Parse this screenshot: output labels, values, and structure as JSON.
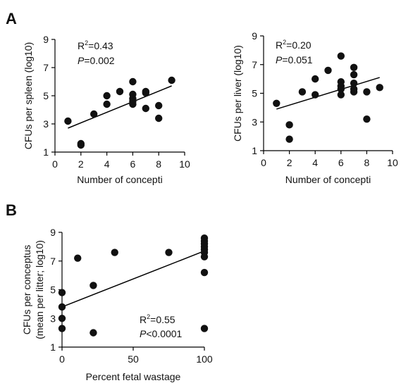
{
  "panels": [
    {
      "letter": "A"
    },
    {
      "letter": "B"
    }
  ],
  "chart_data": [
    {
      "type": "scatter",
      "title": "",
      "xlabel": "Number of concepti",
      "ylabel": "CFUs per spleen (log10)",
      "xlim": [
        0,
        10
      ],
      "ylim": [
        1,
        9
      ],
      "xticks": [
        0,
        2,
        4,
        6,
        8,
        10
      ],
      "yticks": [
        1,
        3,
        5,
        7,
        9
      ],
      "stats": {
        "r2_prefix": "R",
        "r2_sup": "2",
        "r2_value": "=0.43",
        "p_italic": "P",
        "p_value": "=0.002"
      },
      "fit_line": {
        "x": [
          1,
          9
        ],
        "y": [
          2.7,
          5.7
        ]
      },
      "points": [
        {
          "x": 1,
          "y": 3.2
        },
        {
          "x": 2,
          "y": 1.6
        },
        {
          "x": 2,
          "y": 1.5
        },
        {
          "x": 3,
          "y": 3.7
        },
        {
          "x": 4,
          "y": 5.0
        },
        {
          "x": 4,
          "y": 4.4
        },
        {
          "x": 5,
          "y": 5.3
        },
        {
          "x": 6,
          "y": 6.0
        },
        {
          "x": 6,
          "y": 5.1
        },
        {
          "x": 6,
          "y": 4.8
        },
        {
          "x": 6,
          "y": 4.6
        },
        {
          "x": 6,
          "y": 4.4
        },
        {
          "x": 7,
          "y": 5.3
        },
        {
          "x": 7,
          "y": 5.2
        },
        {
          "x": 7,
          "y": 4.1
        },
        {
          "x": 8,
          "y": 4.3
        },
        {
          "x": 8,
          "y": 3.4
        },
        {
          "x": 9,
          "y": 6.1
        }
      ]
    },
    {
      "type": "scatter",
      "title": "",
      "xlabel": "Number of concepti",
      "ylabel": "CFUs per liver (log10)",
      "xlim": [
        0,
        10
      ],
      "ylim": [
        1,
        9
      ],
      "xticks": [
        0,
        2,
        4,
        6,
        8,
        10
      ],
      "yticks": [
        1,
        3,
        5,
        7,
        9
      ],
      "stats": {
        "r2_prefix": "R",
        "r2_sup": "2",
        "r2_value": "=0.20",
        "p_italic": "P",
        "p_value": "=0.051"
      },
      "fit_line": {
        "x": [
          1,
          9
        ],
        "y": [
          3.9,
          6.1
        ]
      },
      "points": [
        {
          "x": 1,
          "y": 4.3
        },
        {
          "x": 2,
          "y": 2.8
        },
        {
          "x": 2,
          "y": 1.8
        },
        {
          "x": 3,
          "y": 5.1
        },
        {
          "x": 4,
          "y": 6.0
        },
        {
          "x": 4,
          "y": 4.9
        },
        {
          "x": 5,
          "y": 6.6
        },
        {
          "x": 6,
          "y": 7.6
        },
        {
          "x": 6,
          "y": 5.8
        },
        {
          "x": 6,
          "y": 5.5
        },
        {
          "x": 6,
          "y": 5.3
        },
        {
          "x": 6,
          "y": 4.9
        },
        {
          "x": 7,
          "y": 6.8
        },
        {
          "x": 7,
          "y": 6.3
        },
        {
          "x": 7,
          "y": 5.7
        },
        {
          "x": 7,
          "y": 5.3
        },
        {
          "x": 7,
          "y": 5.1
        },
        {
          "x": 8,
          "y": 5.1
        },
        {
          "x": 8,
          "y": 3.2
        },
        {
          "x": 9,
          "y": 5.4
        }
      ]
    },
    {
      "type": "scatter",
      "title": "",
      "xlabel": "Percent fetal wastage",
      "ylabel": "CFUs per conceptus",
      "ylabel2": "(mean per litter; log10)",
      "xlim": [
        0,
        100
      ],
      "ylim": [
        1,
        9
      ],
      "xticks": [
        0,
        50,
        100
      ],
      "yticks": [
        1,
        3,
        5,
        7,
        9
      ],
      "stats": {
        "r2_prefix": "R",
        "r2_sup": "2",
        "r2_value": "=0.55",
        "p_italic": "P",
        "p_value": "<0.0001"
      },
      "fit_line": {
        "x": [
          0,
          100
        ],
        "y": [
          3.8,
          7.7
        ]
      },
      "points": [
        {
          "x": 0,
          "y": 4.8
        },
        {
          "x": 0,
          "y": 3.8
        },
        {
          "x": 0,
          "y": 3.0
        },
        {
          "x": 0,
          "y": 2.3
        },
        {
          "x": 11,
          "y": 7.2
        },
        {
          "x": 22,
          "y": 5.3
        },
        {
          "x": 22,
          "y": 2.0
        },
        {
          "x": 37,
          "y": 7.6
        },
        {
          "x": 75,
          "y": 7.6
        },
        {
          "x": 100,
          "y": 8.6
        },
        {
          "x": 100,
          "y": 8.4
        },
        {
          "x": 100,
          "y": 8.2
        },
        {
          "x": 100,
          "y": 8.0
        },
        {
          "x": 100,
          "y": 7.8
        },
        {
          "x": 100,
          "y": 7.6
        },
        {
          "x": 100,
          "y": 7.3
        },
        {
          "x": 100,
          "y": 6.2
        },
        {
          "x": 100,
          "y": 2.3
        }
      ]
    }
  ]
}
